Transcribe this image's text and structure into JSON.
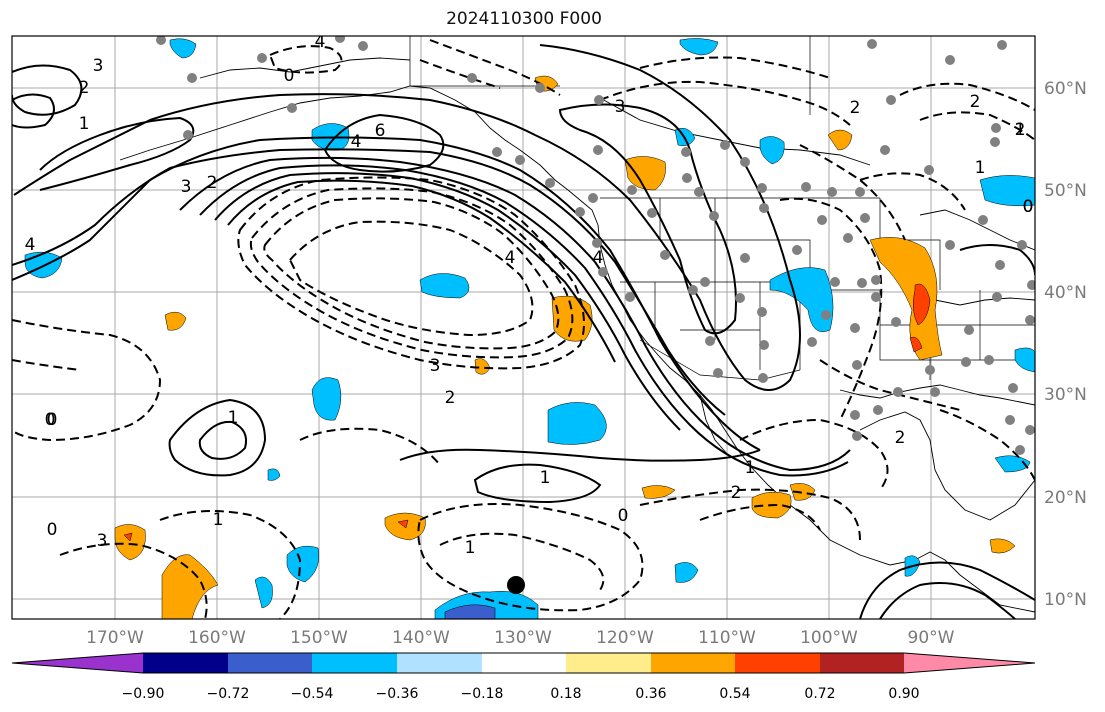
{
  "title": "2024110300 F000",
  "lon_labels": [
    "170°W",
    "160°W",
    "150°W",
    "140°W",
    "130°W",
    "120°W",
    "110°W",
    "100°W",
    "90°W"
  ],
  "lat_labels": [
    "60°N",
    "50°N",
    "40°N",
    "30°N",
    "20°N",
    "10°N"
  ],
  "colorbar": {
    "ticks": [
      "−0.90",
      "−0.72",
      "−0.54",
      "−0.36",
      "−0.18",
      "0.18",
      "0.36",
      "0.54",
      "0.72",
      "0.90"
    ],
    "colors": [
      "#9a32cd",
      "#00008b",
      "#3a5fcd",
      "#00bfff",
      "#b0e2ff",
      "#ffffff",
      "#ffec8b",
      "#ffa500",
      "#ff4000",
      "#b22222",
      "#ff8aa8"
    ]
  },
  "contour_labels": [
    {
      "text": "3"
    },
    {
      "text": "2"
    },
    {
      "text": "1"
    },
    {
      "text": "0"
    },
    {
      "text": "4"
    },
    {
      "text": "6"
    },
    {
      "text": "4"
    },
    {
      "text": "3"
    },
    {
      "text": "2"
    },
    {
      "text": "4"
    },
    {
      "text": "3"
    },
    {
      "text": "2"
    },
    {
      "text": "1"
    },
    {
      "text": "0"
    },
    {
      "text": "1"
    },
    {
      "text": "2"
    },
    {
      "text": "0"
    },
    {
      "text": "1"
    },
    {
      "text": "2"
    },
    {
      "text": "3"
    },
    {
      "text": "4"
    },
    {
      "text": "4"
    },
    {
      "text": "3"
    },
    {
      "text": "0"
    },
    {
      "text": "2"
    },
    {
      "text": "0"
    },
    {
      "text": "0"
    },
    {
      "text": "1"
    },
    {
      "text": "1"
    },
    {
      "text": "1"
    },
    {
      "text": "0"
    },
    {
      "text": "2"
    },
    {
      "text": "1"
    },
    {
      "text": "2"
    }
  ]
}
